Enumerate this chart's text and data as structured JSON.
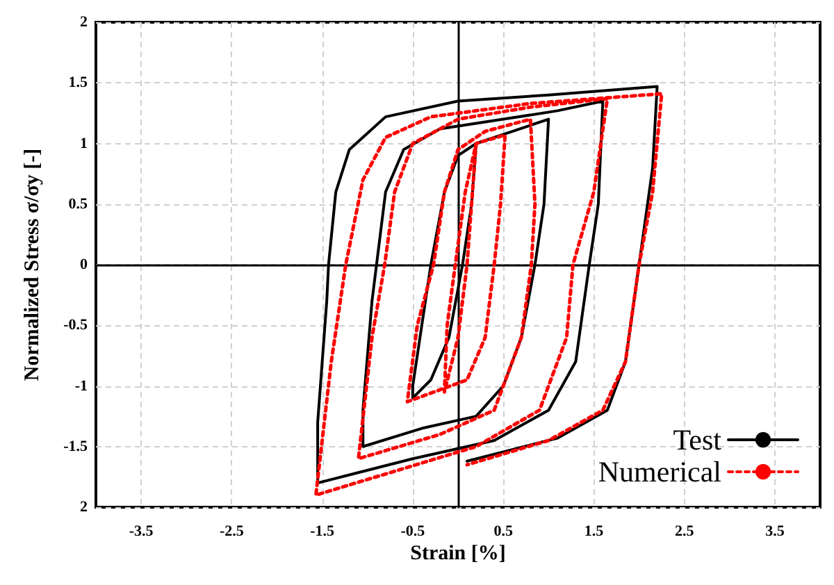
{
  "chart_data": {
    "type": "line",
    "xlabel": "Strain [%]",
    "ylabel": "Normalized Stress σ/σy [-]",
    "xlim": [
      -4,
      4
    ],
    "ylim": [
      -2,
      2
    ],
    "xticks": [
      -3.5,
      -2.5,
      -1.5,
      -0.5,
      0.5,
      1.5,
      2.5,
      3.5
    ],
    "yticks": [
      {
        "value": -2,
        "label": "2"
      },
      -1.5,
      -1,
      -0.5,
      0,
      0.5,
      1,
      1.5,
      2
    ],
    "grid": true,
    "legend": "bottom right",
    "marker": "none",
    "series": [
      {
        "name": "Test",
        "color": "#000000",
        "line_style": "solid",
        "x": [
          0.2,
          0.15,
          0.05,
          -0.1,
          -0.3,
          -0.5,
          -0.5,
          -0.4,
          -0.3,
          -0.15,
          0,
          0.2,
          0.6,
          1.0,
          0.95,
          0.85,
          0.7,
          0.5,
          0.2,
          -0.4,
          -1.05,
          -1.05,
          -0.95,
          -0.9,
          -0.8,
          -0.6,
          -0.2,
          0.5,
          1.1,
          1.6,
          1.55,
          1.45,
          1.3,
          1.0,
          0.4,
          -0.5,
          -1.55,
          -1.55,
          -1.45,
          -1.43,
          -1.35,
          -1.2,
          -0.8,
          0,
          1.0,
          2.2,
          2.15,
          2.0,
          1.85,
          1.65,
          1.1,
          0.1
        ],
        "values": [
          1.0,
          0.5,
          0,
          -0.6,
          -0.95,
          -1.1,
          -1.0,
          -0.5,
          0,
          0.6,
          0.9,
          1.0,
          1.1,
          1.2,
          0.5,
          0,
          -0.6,
          -1.0,
          -1.25,
          -1.35,
          -1.5,
          -1.2,
          -0.3,
          0,
          0.6,
          0.95,
          1.12,
          1.2,
          1.27,
          1.35,
          0.5,
          0,
          -0.8,
          -1.2,
          -1.45,
          -1.6,
          -1.8,
          -1.3,
          -0.3,
          0,
          0.6,
          0.95,
          1.22,
          1.35,
          1.4,
          1.47,
          0.8,
          0,
          -0.8,
          -1.2,
          -1.43,
          -1.62
        ]
      },
      {
        "name": "Numerical",
        "color": "#ff0000",
        "line_style": "dashed",
        "x": [
          0.2,
          0.15,
          0.1,
          0.0,
          -0.15,
          -0.12,
          -0.03,
          0.08,
          0.2,
          0.52,
          0.47,
          0.4,
          0.3,
          0.1,
          -0.56,
          -0.45,
          -0.27,
          -0.15,
          0,
          0.3,
          0.8,
          0.85,
          0.81,
          0.7,
          0.4,
          -0.2,
          -1.1,
          -0.95,
          -0.81,
          -0.7,
          -0.5,
          0,
          0.8,
          1.65,
          1.5,
          1.27,
          1.2,
          0.9,
          0.2,
          -1.57,
          -1.4,
          -1.24,
          -1.05,
          -0.8,
          -0.3,
          0.8,
          2.25,
          2.15,
          2.0,
          1.85,
          1.6,
          1.0,
          0.1
        ],
        "values": [
          1.0,
          0.5,
          0,
          -0.6,
          -1.05,
          -0.5,
          0,
          0.6,
          1.0,
          1.07,
          0.5,
          0,
          -0.6,
          -0.95,
          -1.13,
          -0.5,
          0,
          0.6,
          0.95,
          1.1,
          1.2,
          0.5,
          0,
          -0.6,
          -1.2,
          -1.4,
          -1.6,
          -0.6,
          0,
          0.6,
          1.0,
          1.2,
          1.3,
          1.37,
          0.6,
          0,
          -0.6,
          -1.2,
          -1.5,
          -1.9,
          -0.8,
          0,
          0.7,
          1.05,
          1.22,
          1.33,
          1.41,
          0.6,
          0,
          -0.8,
          -1.2,
          -1.45,
          -1.65
        ]
      }
    ]
  }
}
